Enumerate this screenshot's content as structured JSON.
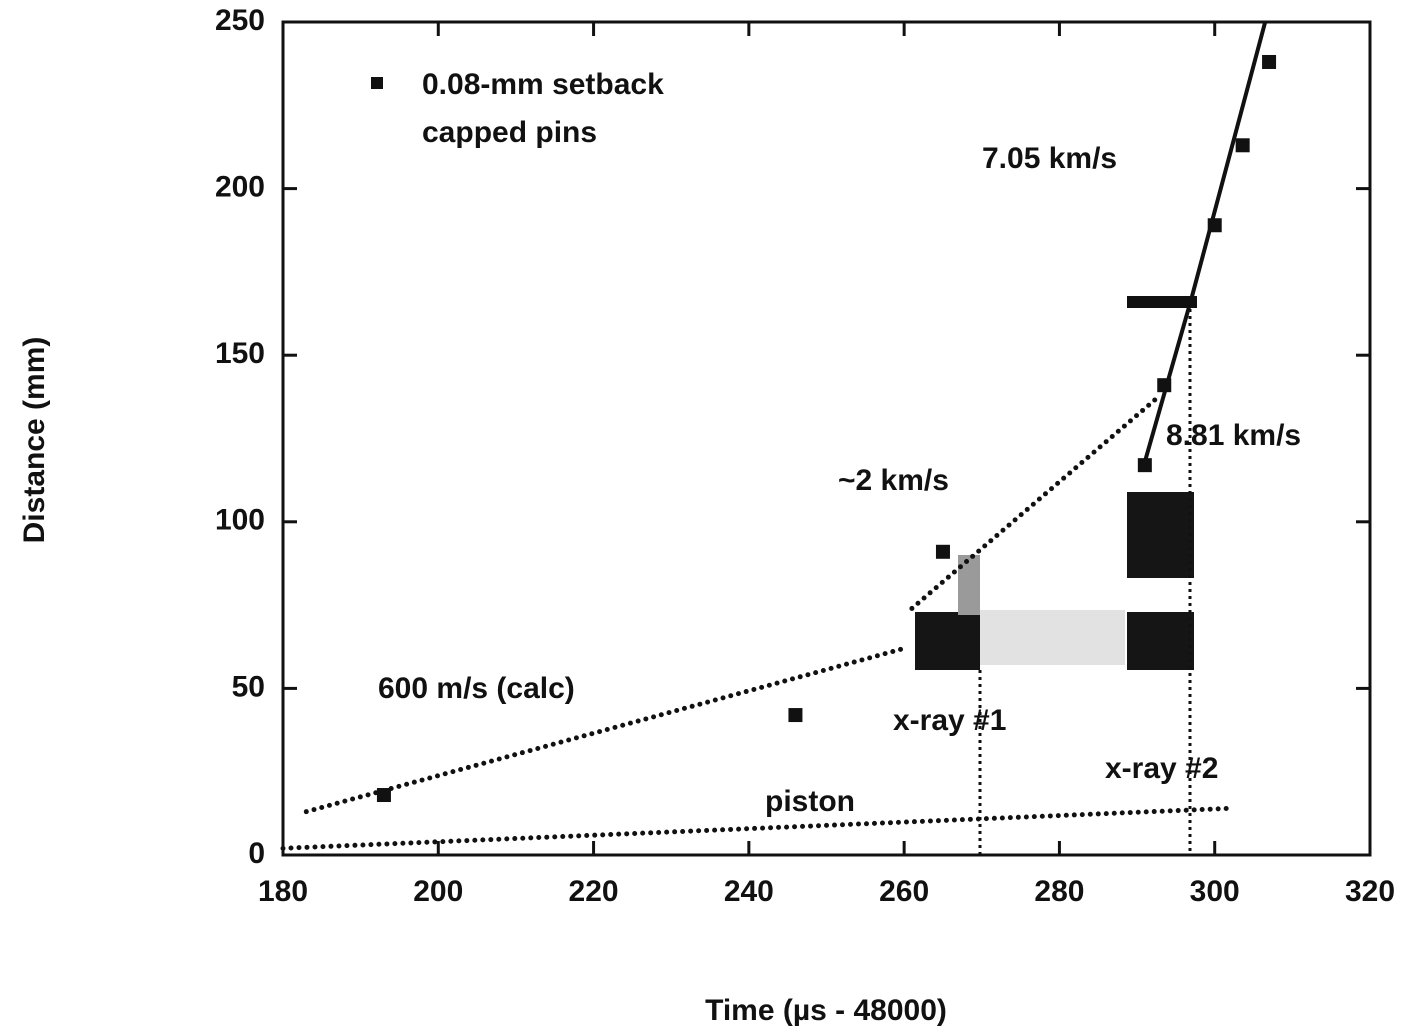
{
  "chart_data": {
    "type": "scatter",
    "xlabel": "Time (µs - 48000)",
    "ylabel": "Distance (mm)",
    "xlim": [
      180,
      320
    ],
    "ylim": [
      0,
      250
    ],
    "xticks": [
      180,
      200,
      220,
      240,
      260,
      280,
      300,
      320
    ],
    "yticks": [
      0,
      50,
      100,
      150,
      200,
      250
    ],
    "color": "#111111",
    "legend": [
      "0.08-mm  setback",
      "capped pins"
    ],
    "x": [
      193,
      246,
      265,
      291,
      293.5,
      300,
      303.6,
      307
    ],
    "values": [
      18,
      42,
      91,
      117,
      141,
      189,
      213,
      238
    ],
    "lines": [
      {
        "style": "solid",
        "x": [
          297,
          306.5
        ],
        "y": [
          167,
          250
        ]
      },
      {
        "style": "solid",
        "x": [
          291,
          297
        ],
        "y": [
          118,
          167
        ]
      },
      {
        "style": "dotted",
        "x": [
          261,
          293
        ],
        "y": [
          74,
          138
        ]
      },
      {
        "style": "dotted",
        "x": [
          183,
          260
        ],
        "y": [
          13,
          62
        ]
      },
      {
        "style": "dotted",
        "x": [
          180,
          302
        ],
        "y": [
          2,
          14
        ]
      }
    ],
    "annotations": [
      "7.05  km/s",
      "8.81  km/s",
      "~2  km/s",
      "600  m/s  (calc)",
      "x-ray  #1",
      "x-ray  #2",
      "piston"
    ]
  }
}
